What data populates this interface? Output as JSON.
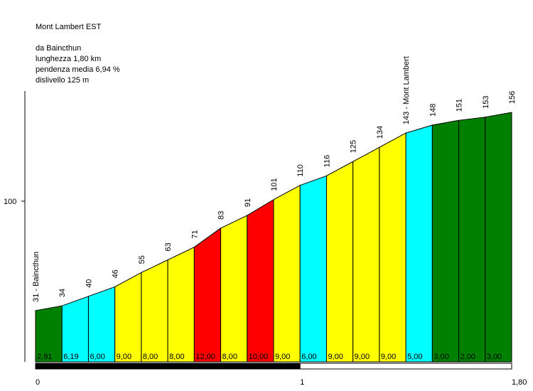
{
  "chart_data": {
    "type": "area",
    "title": "Mont Lambert EST",
    "info_lines": [
      "da Baincthun",
      "lunghezza 1,80 km",
      "pendenza media 6,94 %",
      "dislivello 125 m"
    ],
    "xlim": [
      0,
      1.8
    ],
    "x_ticks": [
      {
        "value": 0,
        "label": "0"
      },
      {
        "value": 1,
        "label": "1"
      },
      {
        "value": 1.8,
        "label": "1,80"
      }
    ],
    "y_ticks": [
      {
        "value": 100,
        "label": "100"
      }
    ],
    "ylim": [
      0,
      160
    ],
    "points": [
      {
        "x": 0.0,
        "label": "31 - Baincthun"
      },
      {
        "x": 0.1,
        "label": "34"
      },
      {
        "x": 0.2,
        "label": "40"
      },
      {
        "x": 0.3,
        "label": "46"
      },
      {
        "x": 0.4,
        "label": "55"
      },
      {
        "x": 0.5,
        "label": "63"
      },
      {
        "x": 0.6,
        "label": "71"
      },
      {
        "x": 0.7,
        "label": "83"
      },
      {
        "x": 0.8,
        "label": "91"
      },
      {
        "x": 0.9,
        "label": "101"
      },
      {
        "x": 1.0,
        "label": "110"
      },
      {
        "x": 1.1,
        "label": "116"
      },
      {
        "x": 1.2,
        "label": "125"
      },
      {
        "x": 1.3,
        "label": "134"
      },
      {
        "x": 1.4,
        "label": "143 - Mont Lambert"
      },
      {
        "x": 1.5,
        "label": "148"
      },
      {
        "x": 1.6,
        "label": "151"
      },
      {
        "x": 1.7,
        "label": "153"
      },
      {
        "x": 1.8,
        "label": "156"
      }
    ],
    "elevations": [
      31,
      34,
      40,
      46,
      55,
      63,
      71,
      83,
      91,
      101,
      110,
      116,
      125,
      134,
      143,
      148,
      151,
      153,
      156
    ],
    "segments": [
      {
        "grade": "2,91",
        "color": "#008000"
      },
      {
        "grade": "6,19",
        "color": "#00ffff"
      },
      {
        "grade": "6,00",
        "color": "#00ffff"
      },
      {
        "grade": "9,00",
        "color": "#ffff00"
      },
      {
        "grade": "8,00",
        "color": "#ffff00"
      },
      {
        "grade": "8,00",
        "color": "#ffff00"
      },
      {
        "grade": "12,00",
        "color": "#ff0000"
      },
      {
        "grade": "8,00",
        "color": "#ffff00"
      },
      {
        "grade": "10,00",
        "color": "#ff0000"
      },
      {
        "grade": "9,00",
        "color": "#ffff00"
      },
      {
        "grade": "6,00",
        "color": "#00ffff"
      },
      {
        "grade": "9,00",
        "color": "#ffff00"
      },
      {
        "grade": "9,00",
        "color": "#ffff00"
      },
      {
        "grade": "9,00",
        "color": "#ffff00"
      },
      {
        "grade": "5,00",
        "color": "#00ffff"
      },
      {
        "grade": "3,00",
        "color": "#008000"
      },
      {
        "grade": "2,00",
        "color": "#008000"
      },
      {
        "grade": "3,00",
        "color": "#008000"
      }
    ],
    "km_bar": [
      {
        "from": 0,
        "to": 1,
        "color": "#000000"
      },
      {
        "from": 1,
        "to": 1.8,
        "color": "#ffffff"
      }
    ]
  }
}
